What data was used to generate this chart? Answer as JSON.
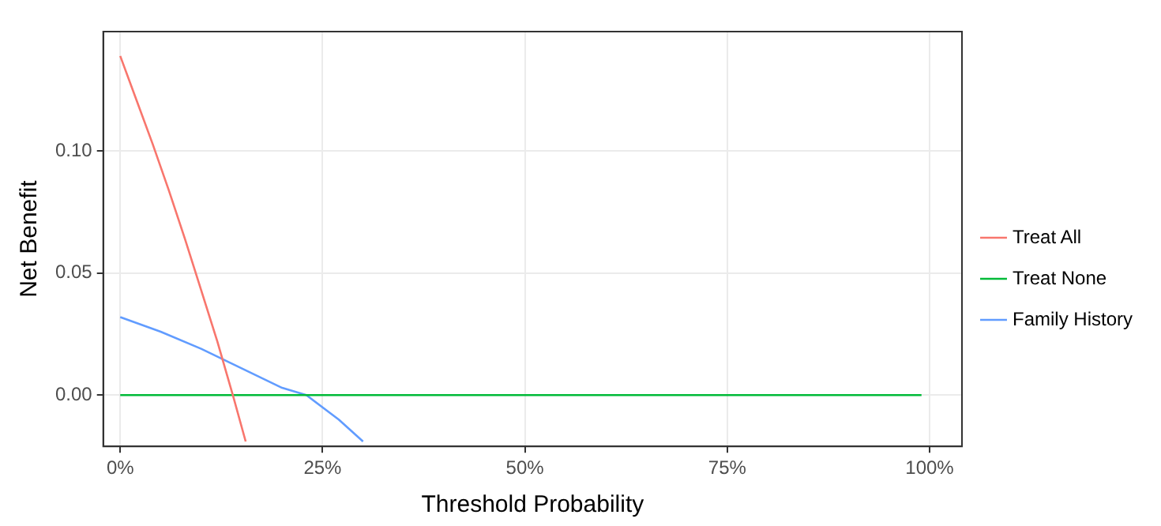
{
  "chart_data": {
    "type": "line",
    "xlabel": "Threshold Probability",
    "ylabel": "Net Benefit",
    "xlim": [
      -0.021,
      1.04
    ],
    "ylim": [
      -0.021,
      0.149
    ],
    "xticks": [
      {
        "value": 0,
        "label": "0%"
      },
      {
        "value": 0.25,
        "label": "25%"
      },
      {
        "value": 0.5,
        "label": "50%"
      },
      {
        "value": 0.75,
        "label": "75%"
      },
      {
        "value": 1,
        "label": "100%"
      }
    ],
    "yticks": [
      {
        "value": 0,
        "label": "0.00"
      },
      {
        "value": 0.05,
        "label": "0.05"
      },
      {
        "value": 0.1,
        "label": "0.10"
      }
    ],
    "grid": true,
    "legend": "right",
    "marker": "none",
    "line_style": "solid",
    "series": [
      {
        "name": "Treat All",
        "color": "#f8766d",
        "x": [
          0,
          0.02,
          0.04,
          0.06,
          0.08,
          0.1,
          0.12,
          0.14,
          0.155
        ],
        "values": [
          0.139,
          0.121,
          0.103,
          0.084,
          0.064,
          0.043,
          0.022,
          -0.001,
          -0.019
        ]
      },
      {
        "name": "Treat None",
        "color": "#00ba38",
        "x": [
          0,
          0.99
        ],
        "values": [
          0,
          0
        ]
      },
      {
        "name": "Family History",
        "color": "#619cff",
        "x": [
          0,
          0.05,
          0.1,
          0.15,
          0.2,
          0.23,
          0.27,
          0.3
        ],
        "values": [
          0.032,
          0.026,
          0.019,
          0.011,
          0.003,
          0.0,
          -0.01,
          -0.019
        ]
      }
    ]
  }
}
